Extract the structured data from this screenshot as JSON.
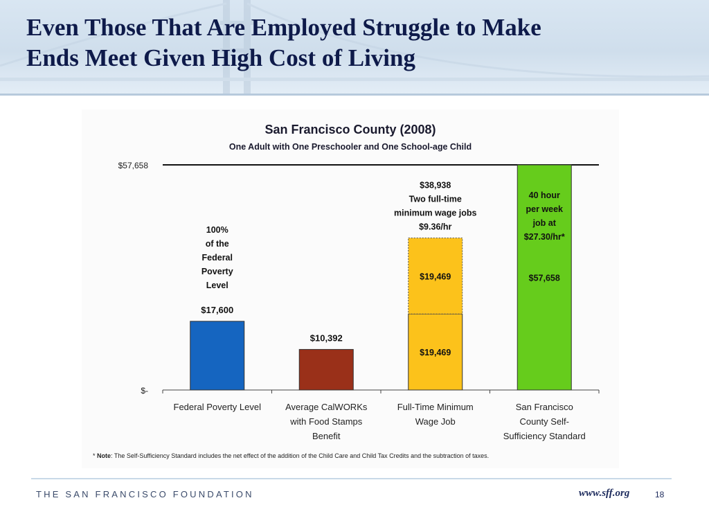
{
  "slide": {
    "title_line1": "Even Those That Are Employed Struggle to Make",
    "title_line2": "Ends Meet Given High Cost of Living"
  },
  "footer": {
    "org": "THE SAN FRANCISCO FOUNDATION",
    "url": "www.sff.org",
    "page": "18"
  },
  "chart_data": {
    "type": "bar",
    "title": "San Francisco County (2008)",
    "subtitle": "One Adult with One Preschooler and One School-age Child",
    "ylim": [
      0,
      57658
    ],
    "y_tick_labels": [
      "$-",
      "$57,658"
    ],
    "reference_line": {
      "value": 57658,
      "label": "$57,658"
    },
    "categories": [
      [
        "Federal Poverty Level"
      ],
      [
        "Average CalWORKs",
        "with Food Stamps",
        "Benefit"
      ],
      [
        "Full-Time Minimum",
        "Wage Job"
      ],
      [
        "San Francisco",
        "County Self-",
        "Sufficiency Standard"
      ]
    ],
    "bars": [
      {
        "segments": [
          {
            "value": 17600,
            "color": "#1565c0",
            "label": "",
            "style": "solid"
          }
        ],
        "value_label": "$17,600",
        "annotation": [
          "100%",
          "of the",
          "Federal",
          "Poverty",
          "Level"
        ]
      },
      {
        "segments": [
          {
            "value": 10392,
            "color": "#9a3019",
            "label": "",
            "style": "solid"
          }
        ],
        "value_label": "$10,392",
        "annotation": []
      },
      {
        "segments": [
          {
            "value": 19469,
            "color": "#fcc21b",
            "label": "$19,469",
            "style": "solid"
          },
          {
            "value": 19469,
            "color": "#fcc21b",
            "label": "$19,469",
            "style": "dashed"
          }
        ],
        "value_label": "",
        "annotation": [
          "$38,938",
          "Two full-time",
          "minimum wage jobs",
          "$9.36/hr"
        ]
      },
      {
        "segments": [
          {
            "value": 57658,
            "color": "#66cc1c",
            "label": "$57,658",
            "style": "solid"
          }
        ],
        "value_label": "",
        "annotation": [
          "40 hour",
          "per week",
          "job at",
          "$27.30/hr*"
        ]
      }
    ],
    "note_bold": "Note",
    "note_prefix": "* ",
    "note_text": ": The Self-Sufficiency Standard includes the net effect of the addition of the Child Care and Child Tax Credits and the subtraction of taxes."
  }
}
